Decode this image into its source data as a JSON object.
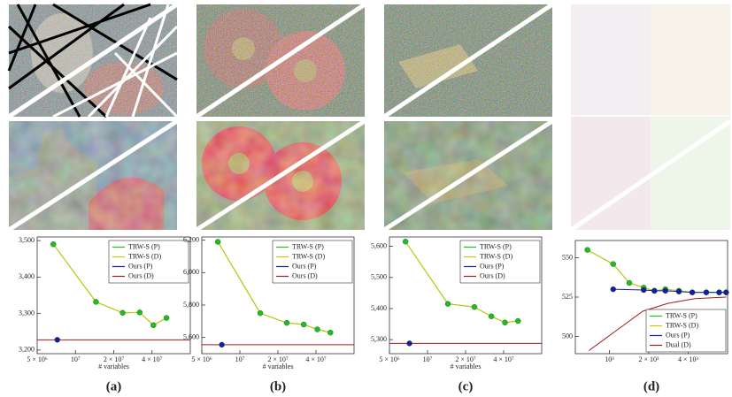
{
  "chart_data": [
    {
      "type": "line",
      "caption": "(a)",
      "xlabel": "# variables",
      "xlog": true,
      "xlim": [
        5000000,
        80000000
      ],
      "ylim": [
        3190,
        3510
      ],
      "xticks": [
        {
          "value": 5000000,
          "label": "5 × 10⁶"
        },
        {
          "value": 10000000,
          "label": "10⁷"
        },
        {
          "value": 20000000,
          "label": "2 × 10⁷"
        },
        {
          "value": 40000000,
          "label": "4 × 10⁷"
        }
      ],
      "yticks": [
        {
          "value": 3200,
          "label": "3,200"
        },
        {
          "value": 3300,
          "label": "3,300"
        },
        {
          "value": 3400,
          "label": "3,400"
        },
        {
          "value": 3500,
          "label": "3,500"
        }
      ],
      "legend": "upper right",
      "series": [
        {
          "name": "TRW-S (P)",
          "color": "#22bb22",
          "marker": "circle",
          "x": [
            6700000,
            14500000,
            23500000,
            32000000,
            41000000,
            52000000
          ],
          "values": [
            3490,
            3332,
            3302,
            3303,
            3268,
            3288
          ]
        },
        {
          "name": "TRW-S (D)",
          "color": "#c8c800",
          "x": [
            6700000,
            14500000,
            23500000,
            32000000,
            41000000,
            52000000
          ],
          "values": [
            3490,
            3332,
            3302,
            3303,
            3268,
            3288
          ]
        },
        {
          "name": "Ours (P)",
          "color": "#1a1aa8",
          "marker": "circle",
          "x": [
            7200000
          ],
          "values": [
            3228
          ]
        },
        {
          "name": "Ours (D)",
          "color": "#a81a1a",
          "x": [
            5000000,
            80000000
          ],
          "values": [
            3228,
            3228
          ]
        }
      ]
    },
    {
      "type": "line",
      "caption": "(b)",
      "xlabel": "# variables",
      "xlog": true,
      "xlim": [
        5000000,
        80000000
      ],
      "ylim": [
        5500,
        6220
      ],
      "xticks": [
        {
          "value": 5000000,
          "label": "5 × 10⁶"
        },
        {
          "value": 10000000,
          "label": "10⁷"
        },
        {
          "value": 20000000,
          "label": "2 × 10⁷"
        },
        {
          "value": 40000000,
          "label": "4 × 10⁷"
        }
      ],
      "yticks": [
        {
          "value": 5600,
          "label": "5,600"
        },
        {
          "value": 5800,
          "label": "5,800"
        },
        {
          "value": 6000,
          "label": "6,000"
        },
        {
          "value": 6200,
          "label": "6,200"
        }
      ],
      "legend": "upper right",
      "series": [
        {
          "name": "TRW-S (P)",
          "color": "#22bb22",
          "marker": "circle",
          "x": [
            6700000,
            14500000,
            23500000,
            32000000,
            41000000,
            52000000
          ],
          "values": [
            6190,
            5750,
            5690,
            5680,
            5650,
            5630
          ]
        },
        {
          "name": "TRW-S (D)",
          "color": "#c8c800",
          "x": [
            6700000,
            14500000,
            23500000,
            32000000,
            41000000,
            52000000
          ],
          "values": [
            6190,
            5750,
            5690,
            5680,
            5650,
            5630
          ]
        },
        {
          "name": "Ours (P)",
          "color": "#1a1aa8",
          "marker": "circle",
          "x": [
            7200000
          ],
          "values": [
            5555
          ]
        },
        {
          "name": "Ours (D)",
          "color": "#a81a1a",
          "x": [
            5000000,
            80000000
          ],
          "values": [
            5555,
            5555
          ]
        }
      ]
    },
    {
      "type": "line",
      "caption": "(c)",
      "xlabel": "# variables",
      "xlog": true,
      "xlim": [
        5000000,
        80000000
      ],
      "ylim": [
        5255,
        5630
      ],
      "xticks": [
        {
          "value": 5000000,
          "label": "5 × 10⁶"
        },
        {
          "value": 10000000,
          "label": "10⁷"
        },
        {
          "value": 20000000,
          "label": "2 × 10⁷"
        },
        {
          "value": 40000000,
          "label": "4 × 10⁷"
        }
      ],
      "yticks": [
        {
          "value": 5300,
          "label": "5,300"
        },
        {
          "value": 5400,
          "label": "5,400"
        },
        {
          "value": 5500,
          "label": "5,500"
        },
        {
          "value": 5600,
          "label": "5,600"
        }
      ],
      "legend": "upper right",
      "series": [
        {
          "name": "TRW-S (P)",
          "color": "#22bb22",
          "marker": "circle",
          "x": [
            6700000,
            14500000,
            23500000,
            32000000,
            41000000,
            52000000
          ],
          "values": [
            5615,
            5415,
            5405,
            5375,
            5355,
            5360
          ]
        },
        {
          "name": "TRW-S (D)",
          "color": "#c8c800",
          "x": [
            6700000,
            14500000,
            23500000,
            32000000,
            41000000,
            52000000
          ],
          "values": [
            5615,
            5415,
            5405,
            5375,
            5355,
            5360
          ]
        },
        {
          "name": "Ours (P)",
          "color": "#1a1aa8",
          "marker": "circle",
          "x": [
            7200000
          ],
          "values": [
            5288
          ]
        },
        {
          "name": "Ours (D)",
          "color": "#a81a1a",
          "x": [
            5000000,
            80000000
          ],
          "values": [
            5288,
            5288
          ]
        }
      ]
    },
    {
      "type": "line",
      "caption": "(d)",
      "xlog": true,
      "xlim": [
        550,
        8000
      ],
      "ylim": [
        489,
        561
      ],
      "xticks": [
        {
          "value": 1000,
          "label": "10³"
        },
        {
          "value": 2000,
          "label": "2 × 10³"
        },
        {
          "value": 4000,
          "label": "4 × 10³"
        }
      ],
      "yticks": [
        500,
        525,
        550
      ],
      "legend": "lower right",
      "series": [
        {
          "name": "TRW-S (P)",
          "color": "#22bb22",
          "marker": "circle",
          "x": [
            680,
            1070,
            1420,
            1830,
            2210,
            2680,
            3400,
            4300,
            5500,
            6900,
            7800
          ],
          "values": [
            555,
            546,
            534,
            531,
            529,
            530,
            529,
            528,
            528,
            528,
            528
          ]
        },
        {
          "name": "TRW-S (D)",
          "color": "#c8c800",
          "x": [
            680,
            1070,
            1420,
            1830,
            2210,
            2680,
            3400,
            4300,
            5500,
            6900,
            7800
          ],
          "values": [
            555,
            546,
            534,
            531,
            529,
            530,
            529,
            528,
            528,
            528,
            528
          ]
        },
        {
          "name": "Ours (P)",
          "color": "#1a1aa8",
          "marker": "circle",
          "x": [
            1070,
            1830,
            2210,
            2680,
            3400,
            4300,
            5500,
            6900,
            7800
          ],
          "values": [
            530,
            529.5,
            529,
            529,
            528.5,
            528,
            528,
            528,
            528
          ]
        },
        {
          "name": "Dual (D)",
          "color": "#a81a1a",
          "x": [
            700,
            1100,
            1800,
            2800,
            4500,
            7800
          ],
          "values": [
            491,
            503,
            516,
            521,
            524,
            525
          ]
        }
      ]
    }
  ]
}
